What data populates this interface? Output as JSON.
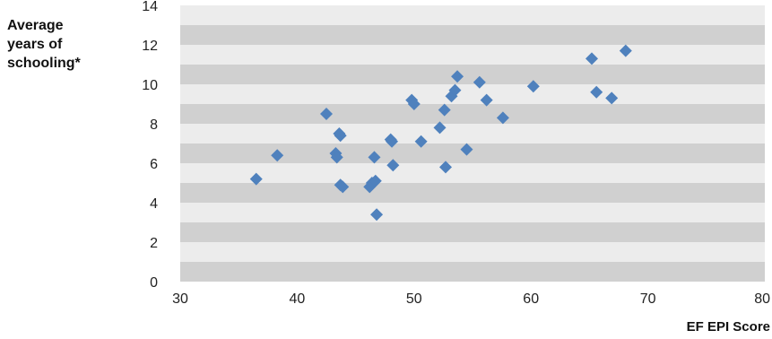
{
  "chart_data": {
    "type": "scatter",
    "title": "",
    "xlabel": "EF EPI Score",
    "ylabel": [
      "Average",
      "years of",
      "schooling*"
    ],
    "xlim": [
      30,
      80
    ],
    "ylim": [
      0,
      14
    ],
    "xticks": [
      "30",
      "40",
      "50",
      "60",
      "70",
      "80"
    ],
    "yticks": [
      "0",
      "2",
      "4",
      "6",
      "8",
      "10",
      "12",
      "14"
    ],
    "band_colors": [
      "#d0d0d0",
      "#ececec"
    ],
    "marker_color": "#4f81bd",
    "points": [
      {
        "x": 36.5,
        "y": 5.2
      },
      {
        "x": 38.3,
        "y": 6.4
      },
      {
        "x": 42.5,
        "y": 8.5
      },
      {
        "x": 43.3,
        "y": 6.5
      },
      {
        "x": 43.4,
        "y": 6.3
      },
      {
        "x": 43.6,
        "y": 7.5
      },
      {
        "x": 43.7,
        "y": 7.4
      },
      {
        "x": 43.7,
        "y": 4.9
      },
      {
        "x": 43.9,
        "y": 4.8
      },
      {
        "x": 46.2,
        "y": 4.8
      },
      {
        "x": 46.4,
        "y": 5.0
      },
      {
        "x": 46.6,
        "y": 6.3
      },
      {
        "x": 46.7,
        "y": 5.1
      },
      {
        "x": 46.8,
        "y": 3.4
      },
      {
        "x": 48.0,
        "y": 7.2
      },
      {
        "x": 48.1,
        "y": 7.1
      },
      {
        "x": 48.2,
        "y": 5.9
      },
      {
        "x": 49.8,
        "y": 9.2
      },
      {
        "x": 50.0,
        "y": 9.0
      },
      {
        "x": 50.6,
        "y": 7.1
      },
      {
        "x": 52.2,
        "y": 7.8
      },
      {
        "x": 52.6,
        "y": 8.7
      },
      {
        "x": 52.7,
        "y": 5.8
      },
      {
        "x": 53.2,
        "y": 9.4
      },
      {
        "x": 53.5,
        "y": 9.7
      },
      {
        "x": 53.7,
        "y": 10.4
      },
      {
        "x": 54.5,
        "y": 6.7
      },
      {
        "x": 55.6,
        "y": 10.1
      },
      {
        "x": 56.2,
        "y": 9.2
      },
      {
        "x": 57.6,
        "y": 8.3
      },
      {
        "x": 60.2,
        "y": 9.9
      },
      {
        "x": 65.2,
        "y": 11.3
      },
      {
        "x": 65.6,
        "y": 9.6
      },
      {
        "x": 66.9,
        "y": 9.3
      },
      {
        "x": 68.1,
        "y": 11.7
      }
    ]
  }
}
